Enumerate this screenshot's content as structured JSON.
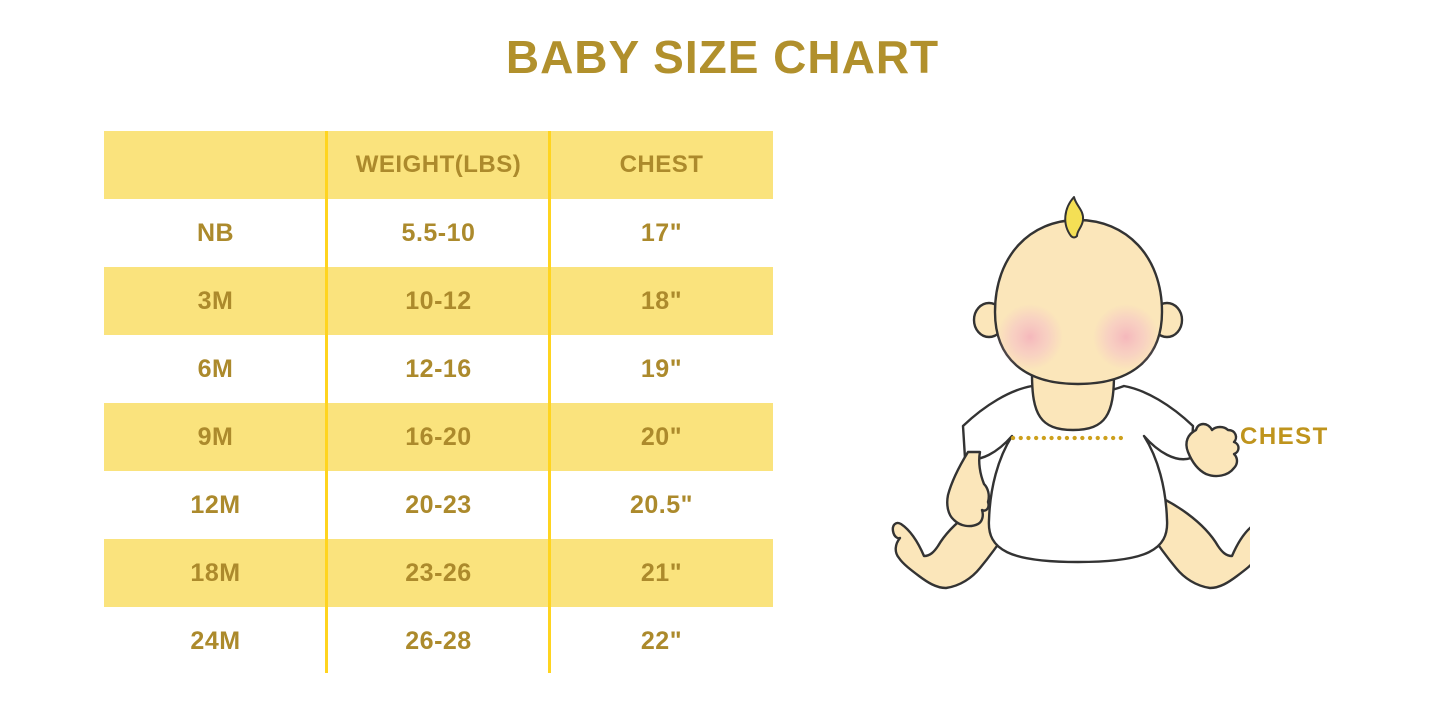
{
  "page": {
    "title": "BABY SIZE CHART"
  },
  "chart_data": {
    "type": "table",
    "title": "BABY SIZE CHART",
    "columns": [
      "",
      "WEIGHT(LBS)",
      "CHEST"
    ],
    "rows": [
      [
        "NB",
        "5.5-10",
        "17\""
      ],
      [
        "3M",
        "10-12",
        "18\""
      ],
      [
        "6M",
        "12-16",
        "19\""
      ],
      [
        "9M",
        "16-20",
        "20\""
      ],
      [
        "12M",
        "20-23",
        "20.5\""
      ],
      [
        "18M",
        "23-26",
        "21\""
      ],
      [
        "24M",
        "26-28",
        "22\""
      ]
    ],
    "row_striping": "header and odd data rows yellow, others white",
    "legend_position": "none",
    "grid": "vertical column dividers only"
  },
  "diagram": {
    "chest_label": "CHEST"
  },
  "colors": {
    "title_gold": "#b1902c",
    "table_text_gold": "#ac8a2c",
    "row_yellow": "#fae37d",
    "divider_yellow": "#ffd41f",
    "chest_label_gold": "#bf941d",
    "dotted_line_gold": "#cda01d",
    "baby_skin": "#fbe6ba",
    "baby_cheek_pink": "#f3acbc",
    "baby_hair_yellow": "#f4df55",
    "baby_outline": "#333333",
    "onesie_white": "#ffffff",
    "background": "#ffffff"
  }
}
